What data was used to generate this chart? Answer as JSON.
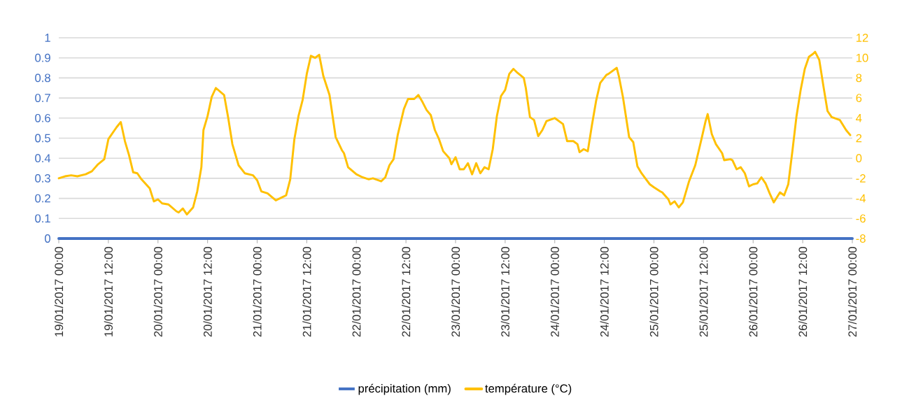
{
  "chart_data": {
    "type": "line",
    "xlim": [
      "2017-01-19T00:00",
      "2017-01-27T00:00"
    ],
    "xticks": [
      {
        "value": "2017-01-19T00:00",
        "label": "19/01/2017 00:00"
      },
      {
        "value": "2017-01-19T12:00",
        "label": "19/01/2017 12:00"
      },
      {
        "value": "2017-01-20T00:00",
        "label": "20/01/2017 00:00"
      },
      {
        "value": "2017-01-20T12:00",
        "label": "20/01/2017 12:00"
      },
      {
        "value": "2017-01-21T00:00",
        "label": "21/01/2017 00:00"
      },
      {
        "value": "2017-01-21T12:00",
        "label": "21/01/2017 12:00"
      },
      {
        "value": "2017-01-22T00:00",
        "label": "22/01/2017 00:00"
      },
      {
        "value": "2017-01-22T12:00",
        "label": "22/01/2017 12:00"
      },
      {
        "value": "2017-01-23T00:00",
        "label": "23/01/2017 00:00"
      },
      {
        "value": "2017-01-23T12:00",
        "label": "23/01/2017 12:00"
      },
      {
        "value": "2017-01-24T00:00",
        "label": "24/01/2017 00:00"
      },
      {
        "value": "2017-01-24T12:00",
        "label": "24/01/2017 12:00"
      },
      {
        "value": "2017-01-25T00:00",
        "label": "25/01/2017 00:00"
      },
      {
        "value": "2017-01-25T12:00",
        "label": "25/01/2017 12:00"
      },
      {
        "value": "2017-01-26T00:00",
        "label": "26/01/2017 00:00"
      },
      {
        "value": "2017-01-26T12:00",
        "label": "26/01/2017 12:00"
      },
      {
        "value": "2017-01-27T00:00",
        "label": "27/01/2017 00:00"
      }
    ],
    "ylim": [
      0,
      1
    ],
    "yticks": [
      0,
      0.1,
      0.2,
      0.3,
      0.4,
      0.5,
      0.6,
      0.7,
      0.8,
      0.9,
      1
    ],
    "y2lim": [
      -8,
      12
    ],
    "y2ticks": [
      -8,
      -6,
      -4,
      -2,
      0,
      2,
      4,
      6,
      8,
      10,
      12
    ],
    "grid": "y",
    "legend": "bottom",
    "series": [
      {
        "name": "précipitation (mm)",
        "color": "#4472c4",
        "x": [
          "2017-01-19T00:00",
          "2017-01-27T00:00"
        ],
        "values": [
          0,
          0
        ]
      },
      {
        "name": "température (°C)",
        "color": "#ffc000",
        "axis": "y2",
        "x": [
          "2017-01-19T00:00",
          "2017-01-19T01:30",
          "2017-01-19T03:00",
          "2017-01-19T04:30",
          "2017-01-19T06:30",
          "2017-01-19T08:00",
          "2017-01-19T09:30",
          "2017-01-19T11:00",
          "2017-01-19T12:00",
          "2017-01-19T13:30",
          "2017-01-19T14:00",
          "2017-01-19T15:00",
          "2017-01-19T16:00",
          "2017-01-19T17:00",
          "2017-01-19T18:00",
          "2017-01-19T19:00",
          "2017-01-19T20:00",
          "2017-01-19T22:00",
          "2017-01-19T23:00",
          "2017-01-20T00:00",
          "2017-01-20T01:00",
          "2017-01-20T02:30",
          "2017-01-20T04:30",
          "2017-01-20T05:00",
          "2017-01-20T06:00",
          "2017-01-20T07:00",
          "2017-01-20T08:30",
          "2017-01-20T09:30",
          "2017-01-20T10:30",
          "2017-01-20T11:00",
          "2017-01-20T12:00",
          "2017-01-20T13:00",
          "2017-01-20T14:00",
          "2017-01-20T16:00",
          "2017-01-20T17:00",
          "2017-01-20T18:00",
          "2017-01-20T19:30",
          "2017-01-20T21:00",
          "2017-01-20T23:00",
          "2017-01-21T00:00",
          "2017-01-21T01:00",
          "2017-01-21T02:30",
          "2017-01-21T04:30",
          "2017-01-21T06:00",
          "2017-01-21T07:00",
          "2017-01-21T08:00",
          "2017-01-21T09:00",
          "2017-01-21T10:00",
          "2017-01-21T11:00",
          "2017-01-21T12:00",
          "2017-01-21T13:00",
          "2017-01-21T14:00",
          "2017-01-21T15:00",
          "2017-01-21T16:00",
          "2017-01-21T17:30",
          "2017-01-21T19:00",
          "2017-01-21T20:30",
          "2017-01-21T21:00",
          "2017-01-21T22:00",
          "2017-01-22T00:00",
          "2017-01-22T01:30",
          "2017-01-22T03:00",
          "2017-01-22T04:00",
          "2017-01-22T06:00",
          "2017-01-22T07:00",
          "2017-01-22T08:00",
          "2017-01-22T09:00",
          "2017-01-22T10:00",
          "2017-01-22T11:30",
          "2017-01-22T12:30",
          "2017-01-22T14:00",
          "2017-01-22T15:00",
          "2017-01-22T16:00",
          "2017-01-22T17:00",
          "2017-01-22T18:00",
          "2017-01-22T19:00",
          "2017-01-22T20:00",
          "2017-01-22T21:00",
          "2017-01-22T22:30",
          "2017-01-22T23:00",
          "2017-01-23T00:00",
          "2017-01-23T01:00",
          "2017-01-23T02:00",
          "2017-01-23T03:00",
          "2017-01-23T04:00",
          "2017-01-23T05:00",
          "2017-01-23T06:00",
          "2017-01-23T07:00",
          "2017-01-23T08:00",
          "2017-01-23T09:00",
          "2017-01-23T10:00",
          "2017-01-23T11:00",
          "2017-01-23T12:00",
          "2017-01-23T13:00",
          "2017-01-23T14:00",
          "2017-01-23T15:00",
          "2017-01-23T16:30",
          "2017-01-23T17:00",
          "2017-01-23T18:00",
          "2017-01-23T19:00",
          "2017-01-23T20:00",
          "2017-01-23T21:00",
          "2017-01-23T22:00",
          "2017-01-24T00:00",
          "2017-01-24T02:00",
          "2017-01-24T03:00",
          "2017-01-24T04:30",
          "2017-01-24T05:30",
          "2017-01-24T06:00",
          "2017-01-24T07:00",
          "2017-01-24T08:00",
          "2017-01-24T09:00",
          "2017-01-24T10:00",
          "2017-01-24T11:00",
          "2017-01-24T12:30",
          "2017-01-24T13:00",
          "2017-01-24T15:00",
          "2017-01-24T15:30",
          "2017-01-24T16:30",
          "2017-01-24T18:00",
          "2017-01-24T19:00",
          "2017-01-24T20:00",
          "2017-01-24T21:00",
          "2017-01-24T23:00",
          "2017-01-25T00:00",
          "2017-01-25T01:30",
          "2017-01-25T02:00",
          "2017-01-25T03:30",
          "2017-01-25T04:00",
          "2017-01-25T05:00",
          "2017-01-25T06:00",
          "2017-01-25T07:00",
          "2017-01-25T08:30",
          "2017-01-25T10:00",
          "2017-01-25T11:30",
          "2017-01-25T12:30",
          "2017-01-25T13:00",
          "2017-01-25T14:00",
          "2017-01-25T15:00",
          "2017-01-25T16:30",
          "2017-01-25T17:00",
          "2017-01-25T18:30",
          "2017-01-25T19:00",
          "2017-01-25T20:00",
          "2017-01-25T21:00",
          "2017-01-25T22:00",
          "2017-01-25T23:00",
          "2017-01-26T00:00",
          "2017-01-26T01:00",
          "2017-01-26T02:00",
          "2017-01-26T03:00",
          "2017-01-26T04:00",
          "2017-01-26T05:00",
          "2017-01-26T06:30",
          "2017-01-26T07:30",
          "2017-01-26T08:30",
          "2017-01-26T09:30",
          "2017-01-26T10:30",
          "2017-01-26T11:30",
          "2017-01-26T12:30",
          "2017-01-26T13:30",
          "2017-01-26T14:30",
          "2017-01-26T15:00",
          "2017-01-26T16:00",
          "2017-01-26T17:00",
          "2017-01-26T18:00",
          "2017-01-26T19:00",
          "2017-01-26T21:00",
          "2017-01-26T22:30",
          "2017-01-26T23:30"
        ],
        "values": [
          -2.0,
          -1.8,
          -1.7,
          -1.8,
          -1.6,
          -1.3,
          -0.6,
          -0.1,
          1.9,
          2.8,
          3.1,
          3.6,
          1.7,
          0.3,
          -1.4,
          -1.5,
          -2.1,
          -3.0,
          -4.3,
          -4.1,
          -4.5,
          -4.6,
          -5.3,
          -5.4,
          -5.0,
          -5.6,
          -4.9,
          -3.3,
          -0.9,
          2.8,
          4.2,
          6.1,
          7.0,
          6.3,
          4.0,
          1.4,
          -0.7,
          -1.5,
          -1.7,
          -2.2,
          -3.3,
          -3.5,
          -4.2,
          -3.9,
          -3.7,
          -2.1,
          1.9,
          4.2,
          5.8,
          8.4,
          10.2,
          10.0,
          10.3,
          8.2,
          6.3,
          2.1,
          0.8,
          0.5,
          -0.9,
          -1.6,
          -1.9,
          -2.1,
          -2.0,
          -2.3,
          -1.9,
          -0.7,
          -0.1,
          2.3,
          4.9,
          5.9,
          5.9,
          6.3,
          5.6,
          4.8,
          4.3,
          2.8,
          1.9,
          0.7,
          0.0,
          -0.6,
          0.1,
          -1.1,
          -1.1,
          -0.5,
          -1.6,
          -0.5,
          -1.5,
          -0.9,
          -1.1,
          0.9,
          4.2,
          6.2,
          6.8,
          8.4,
          8.9,
          8.5,
          8.0,
          7.0,
          4.1,
          3.8,
          2.2,
          2.8,
          3.7,
          4.0,
          3.4,
          1.7,
          1.7,
          1.4,
          0.6,
          0.9,
          0.7,
          3.3,
          5.7,
          7.5,
          8.3,
          8.4,
          9.0,
          8.2,
          6.1,
          2.1,
          1.6,
          -0.8,
          -1.5,
          -2.6,
          -2.9,
          -3.3,
          -3.4,
          -4.1,
          -4.6,
          -4.3,
          -4.9,
          -4.4,
          -2.3,
          -0.7,
          1.9,
          3.7,
          4.4,
          2.4,
          1.4,
          0.5,
          -0.2,
          -0.1,
          -0.2,
          -1.1,
          -0.9,
          -1.5,
          -2.8,
          -2.6,
          -2.5,
          -1.9,
          -2.5,
          -3.5,
          -4.4,
          -3.4,
          -3.7,
          -2.6,
          0.7,
          4.2,
          6.8,
          8.9,
          10.1,
          10.4,
          10.6,
          9.8,
          7.2,
          4.7,
          4.1,
          3.8,
          2.8,
          2.3
        ]
      }
    ]
  }
}
